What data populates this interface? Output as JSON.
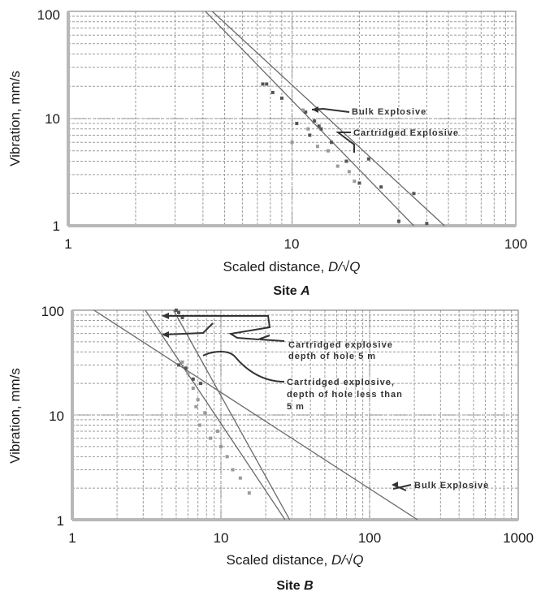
{
  "chart_data": [
    {
      "type": "scatter",
      "panel_title_prefix": "Site ",
      "panel_title_letter": "A",
      "xlabel_prefix": "Scaled distance, ",
      "xlabel_math": "D/√Q",
      "ylabel": "Vibration, mm/s",
      "xscale": "log",
      "yscale": "log",
      "xlim": [
        1,
        100
      ],
      "ylim": [
        1,
        100
      ],
      "xticks": [
        "1",
        "10",
        "100"
      ],
      "yticks": [
        "1",
        "10",
        "100"
      ],
      "grid": true,
      "series": [
        {
          "name": "Bulk Explosive",
          "points": [
            [
              7.4,
              21
            ],
            [
              7.7,
              21
            ],
            [
              8.2,
              17.5
            ],
            [
              9,
              15.5
            ],
            [
              10.5,
              9
            ],
            [
              11.5,
              11.5
            ],
            [
              12,
              7
            ],
            [
              12.6,
              9.5
            ],
            [
              13.2,
              8.5
            ],
            [
              13.5,
              8
            ],
            [
              15,
              6
            ],
            [
              17.5,
              4
            ],
            [
              20,
              2.5
            ],
            [
              22,
              4.2
            ],
            [
              25,
              2.3
            ],
            [
              30,
              1.1
            ],
            [
              35,
              2
            ],
            [
              40,
              1.05
            ]
          ]
        },
        {
          "name": "Cartridged Explosive",
          "points": [
            [
              10,
              6
            ],
            [
              11.2,
              12
            ],
            [
              11.8,
              8
            ],
            [
              13,
              5.5
            ],
            [
              14.5,
              5
            ],
            [
              16,
              3.6
            ],
            [
              18,
              3.2
            ],
            [
              19,
              2.6
            ]
          ]
        }
      ],
      "fit_lines": [
        {
          "name": "Bulk Explosive",
          "from": [
            4.1,
            100
          ],
          "to": [
            35,
            1
          ]
        },
        {
          "name": "Cartridged Explosive",
          "from": [
            4.4,
            100
          ],
          "to": [
            48,
            1
          ]
        }
      ]
    },
    {
      "type": "scatter",
      "panel_title_prefix": "Site ",
      "panel_title_letter": "B",
      "xlabel_prefix": "Scaled distance, ",
      "xlabel_math": "D/√Q",
      "ylabel": "Vibration, mm/s",
      "xscale": "log",
      "yscale": "log",
      "xlim": [
        1,
        1000
      ],
      "ylim": [
        1,
        100
      ],
      "xticks": [
        "1",
        "10",
        "100",
        "1000"
      ],
      "yticks": [
        "1",
        "10",
        "100"
      ],
      "grid": true,
      "series": [
        {
          "name": "Cartridged explosive depth of hole 5 m",
          "points": [
            [
              5,
              100
            ],
            [
              5.2,
              95
            ],
            [
              5.5,
              85
            ],
            [
              5.2,
              30
            ],
            [
              5.8,
              28
            ],
            [
              6.5,
              22
            ],
            [
              7.3,
              20
            ]
          ]
        },
        {
          "name": "Cartridged explosive, depth of hole less than 5 m",
          "points": [
            [
              5.5,
              32
            ],
            [
              6,
              25
            ],
            [
              6.5,
              18
            ],
            [
              7,
              14
            ],
            [
              7.8,
              10.5
            ],
            [
              7.2,
              8
            ],
            [
              8.5,
              6
            ],
            [
              10,
              5
            ],
            [
              11,
              4
            ],
            [
              12,
              3
            ],
            [
              13.5,
              2.5
            ],
            [
              15.5,
              1.8
            ],
            [
              6.8,
              12
            ],
            [
              9.5,
              7
            ]
          ]
        }
      ],
      "fit_lines": [
        {
          "name": "Bulk Explosive",
          "from": [
            1.4,
            100
          ],
          "to": [
            210,
            1
          ]
        },
        {
          "name": "Cartridged explosive depth of hole 5 m",
          "from": [
            3.1,
            100
          ],
          "to": [
            27,
            1
          ]
        },
        {
          "name": "Cartridged explosive, depth of hole less than 5 m",
          "from": [
            4.8,
            100
          ],
          "to": [
            29,
            1
          ]
        }
      ],
      "annotations": [
        "Cartridged explosive depth of hole 5 m",
        "Cartridged explosive, depth of hole less than 5 m",
        "Bulk Explosive"
      ]
    }
  ],
  "annotations_a": {
    "bulk": "Bulk Explosive",
    "cartridged": "Cartridged Explosive"
  },
  "annotations_b": {
    "cart5_line1": "Cartridged explosive",
    "cart5_line2": "depth of hole 5 m",
    "cartlt5_line1": "Cartridged explosive,",
    "cartlt5_line2": "depth of hole less than",
    "cartlt5_line3": "5 m",
    "bulk": "Bulk Explosive"
  }
}
